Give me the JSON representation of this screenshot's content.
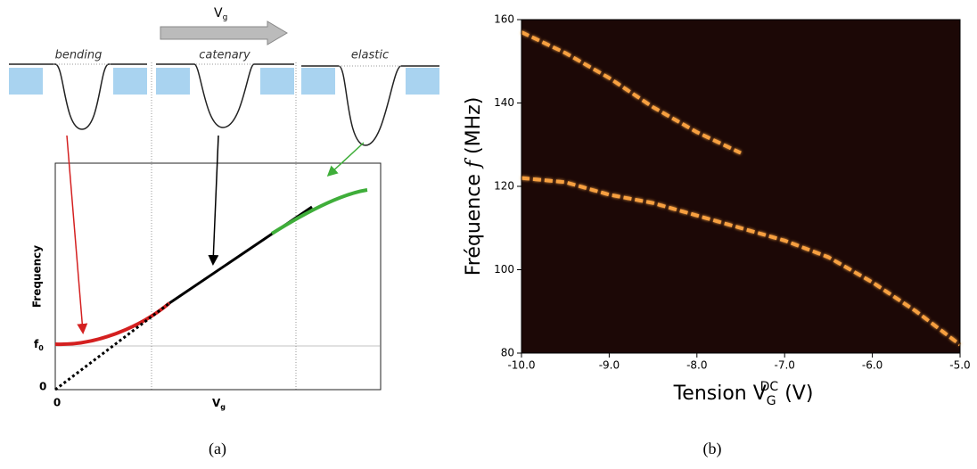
{
  "diagram": {
    "arrow_label": {
      "main": "V",
      "sub": "g"
    },
    "regimes": [
      "bending",
      "catenary",
      "elastic"
    ],
    "y_axis_label": "Frequency",
    "f0_label": {
      "main": "f",
      "sub": "0"
    },
    "origin_y": "0",
    "origin_x": "0",
    "x_axis_label": {
      "main": "V",
      "sub": "g"
    }
  },
  "captions": [
    "(a)",
    "(b)"
  ],
  "chart_data": {
    "type": "line",
    "background": "#1c0806",
    "ylabel": [
      "Fréquence ",
      "f",
      " (MHz)"
    ],
    "xlabel": {
      "main": "Tension V",
      "sub": "G",
      "sup": "DC",
      "unit": " (V)"
    },
    "xlim": [
      -10.0,
      -5.0
    ],
    "ylim": [
      80,
      160
    ],
    "xticks": [
      {
        "value": -10,
        "label": "-10.0"
      },
      {
        "value": -9,
        "label": "-9.0"
      },
      {
        "value": -8,
        "label": "-8.0"
      },
      {
        "value": -7,
        "label": "-7.0"
      },
      {
        "value": -6,
        "label": "-6.0"
      },
      {
        "value": -5,
        "label": "-5.0"
      }
    ],
    "yticks": [
      80,
      100,
      120,
      140,
      160
    ],
    "series": [
      {
        "color": "#f7a040",
        "x": [
          -10,
          -9.5,
          -9,
          -8.5,
          -8,
          -7.5
        ],
        "values": [
          157,
          152,
          146,
          139,
          133,
          128
        ]
      },
      {
        "color": "#f7a040",
        "x": [
          -10,
          -9.5,
          -9,
          -8.5,
          -8,
          -7.5,
          -7,
          -6.5,
          -6,
          -5.5,
          -5
        ],
        "values": [
          122,
          121,
          118,
          116,
          113,
          110,
          107,
          103,
          97,
          90,
          82
        ]
      }
    ]
  }
}
